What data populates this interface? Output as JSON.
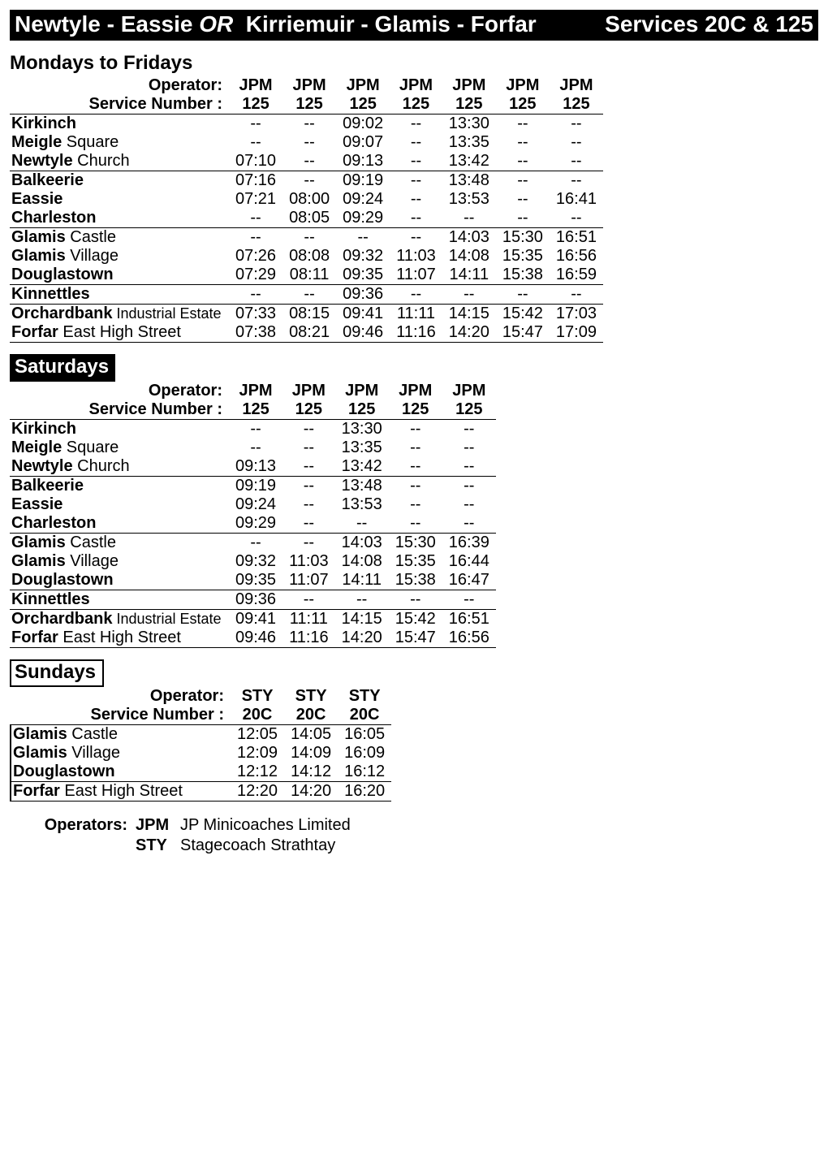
{
  "title": {
    "route_a": "Newtyle - Eassie",
    "or": "OR",
    "route_b": "Kirriemuir - Glamis - Forfar",
    "services": "Services 20C & 125"
  },
  "labels": {
    "operator": "Operator:",
    "service_number": "Service Number :",
    "operators_heading": "Operators:"
  },
  "stops": [
    {
      "bold": "Kirkinch",
      "light": ""
    },
    {
      "bold": "Meigle",
      "light": " Square"
    },
    {
      "bold": "Newtyle",
      "light": " Church"
    },
    {
      "bold": "Balkeerie",
      "light": ""
    },
    {
      "bold": "Eassie",
      "light": ""
    },
    {
      "bold": "Charleston",
      "light": ""
    },
    {
      "bold": "Glamis",
      "light": " Castle"
    },
    {
      "bold": "Glamis",
      "light": " Village"
    },
    {
      "bold": "Douglastown",
      "light": ""
    },
    {
      "bold": "Kinnettles",
      "light": ""
    },
    {
      "bold": "Orchardbank",
      "sub": " Industrial Estate"
    },
    {
      "bold": "Forfar",
      "light": " East High Street"
    }
  ],
  "rule_after": [
    2,
    5,
    8,
    9
  ],
  "sections": [
    {
      "heading": "Mondays to Fridays",
      "heading_style": "plain",
      "operators": [
        "JPM",
        "JPM",
        "JPM",
        "JPM",
        "JPM",
        "JPM",
        "JPM"
      ],
      "service_numbers": [
        "125",
        "125",
        "125",
        "125",
        "125",
        "125",
        "125"
      ],
      "rows": [
        [
          "--",
          "--",
          "09:02",
          "--",
          "13:30",
          "--",
          "--"
        ],
        [
          "--",
          "--",
          "09:07",
          "--",
          "13:35",
          "--",
          "--"
        ],
        [
          "07:10",
          "--",
          "09:13",
          "--",
          "13:42",
          "--",
          "--"
        ],
        [
          "07:16",
          "--",
          "09:19",
          "--",
          "13:48",
          "--",
          "--"
        ],
        [
          "07:21",
          "08:00",
          "09:24",
          "--",
          "13:53",
          "--",
          "16:41"
        ],
        [
          "--",
          "08:05",
          "09:29",
          "--",
          "--",
          "--",
          "--"
        ],
        [
          "--",
          "--",
          "--",
          "--",
          "14:03",
          "15:30",
          "16:51"
        ],
        [
          "07:26",
          "08:08",
          "09:32",
          "11:03",
          "14:08",
          "15:35",
          "16:56"
        ],
        [
          "07:29",
          "08:11",
          "09:35",
          "11:07",
          "14:11",
          "15:38",
          "16:59"
        ],
        [
          "--",
          "--",
          "09:36",
          "--",
          "--",
          "--",
          "--"
        ],
        [
          "07:33",
          "08:15",
          "09:41",
          "11:11",
          "14:15",
          "15:42",
          "17:03"
        ],
        [
          "07:38",
          "08:21",
          "09:46",
          "11:16",
          "14:20",
          "15:47",
          "17:09"
        ]
      ]
    },
    {
      "heading": "Saturdays",
      "heading_style": "inverse",
      "operators": [
        "JPM",
        "JPM",
        "JPM",
        "JPM",
        "JPM"
      ],
      "service_numbers": [
        "125",
        "125",
        "125",
        "125",
        "125"
      ],
      "rows": [
        [
          "--",
          "--",
          "13:30",
          "--",
          "--"
        ],
        [
          "--",
          "--",
          "13:35",
          "--",
          "--"
        ],
        [
          "09:13",
          "--",
          "13:42",
          "--",
          "--"
        ],
        [
          "09:19",
          "--",
          "13:48",
          "--",
          "--"
        ],
        [
          "09:24",
          "--",
          "13:53",
          "--",
          "--"
        ],
        [
          "09:29",
          "--",
          "--",
          "--",
          "--"
        ],
        [
          "--",
          "--",
          "14:03",
          "15:30",
          "16:39"
        ],
        [
          "09:32",
          "11:03",
          "14:08",
          "15:35",
          "16:44"
        ],
        [
          "09:35",
          "11:07",
          "14:11",
          "15:38",
          "16:47"
        ],
        [
          "09:36",
          "--",
          "--",
          "--",
          "--"
        ],
        [
          "09:41",
          "11:11",
          "14:15",
          "15:42",
          "16:51"
        ],
        [
          "09:46",
          "11:16",
          "14:20",
          "15:47",
          "16:56"
        ]
      ]
    },
    {
      "heading": "Sundays",
      "heading_style": "boxed",
      "operators": [
        "STY",
        "STY",
        "STY"
      ],
      "service_numbers": [
        "20C",
        "20C",
        "20C"
      ],
      "stop_indices": [
        6,
        7,
        8,
        11
      ],
      "rule_after": [
        8
      ],
      "left_border": true,
      "rows": [
        [
          "12:05",
          "14:05",
          "16:05"
        ],
        [
          "12:09",
          "14:09",
          "16:09"
        ],
        [
          "12:12",
          "14:12",
          "16:12"
        ],
        [
          "12:20",
          "14:20",
          "16:20"
        ]
      ]
    }
  ],
  "operators_key": [
    {
      "code": "JPM",
      "name": "JP Minicoaches Limited"
    },
    {
      "code": "STY",
      "name": "Stagecoach Strathtay"
    }
  ]
}
